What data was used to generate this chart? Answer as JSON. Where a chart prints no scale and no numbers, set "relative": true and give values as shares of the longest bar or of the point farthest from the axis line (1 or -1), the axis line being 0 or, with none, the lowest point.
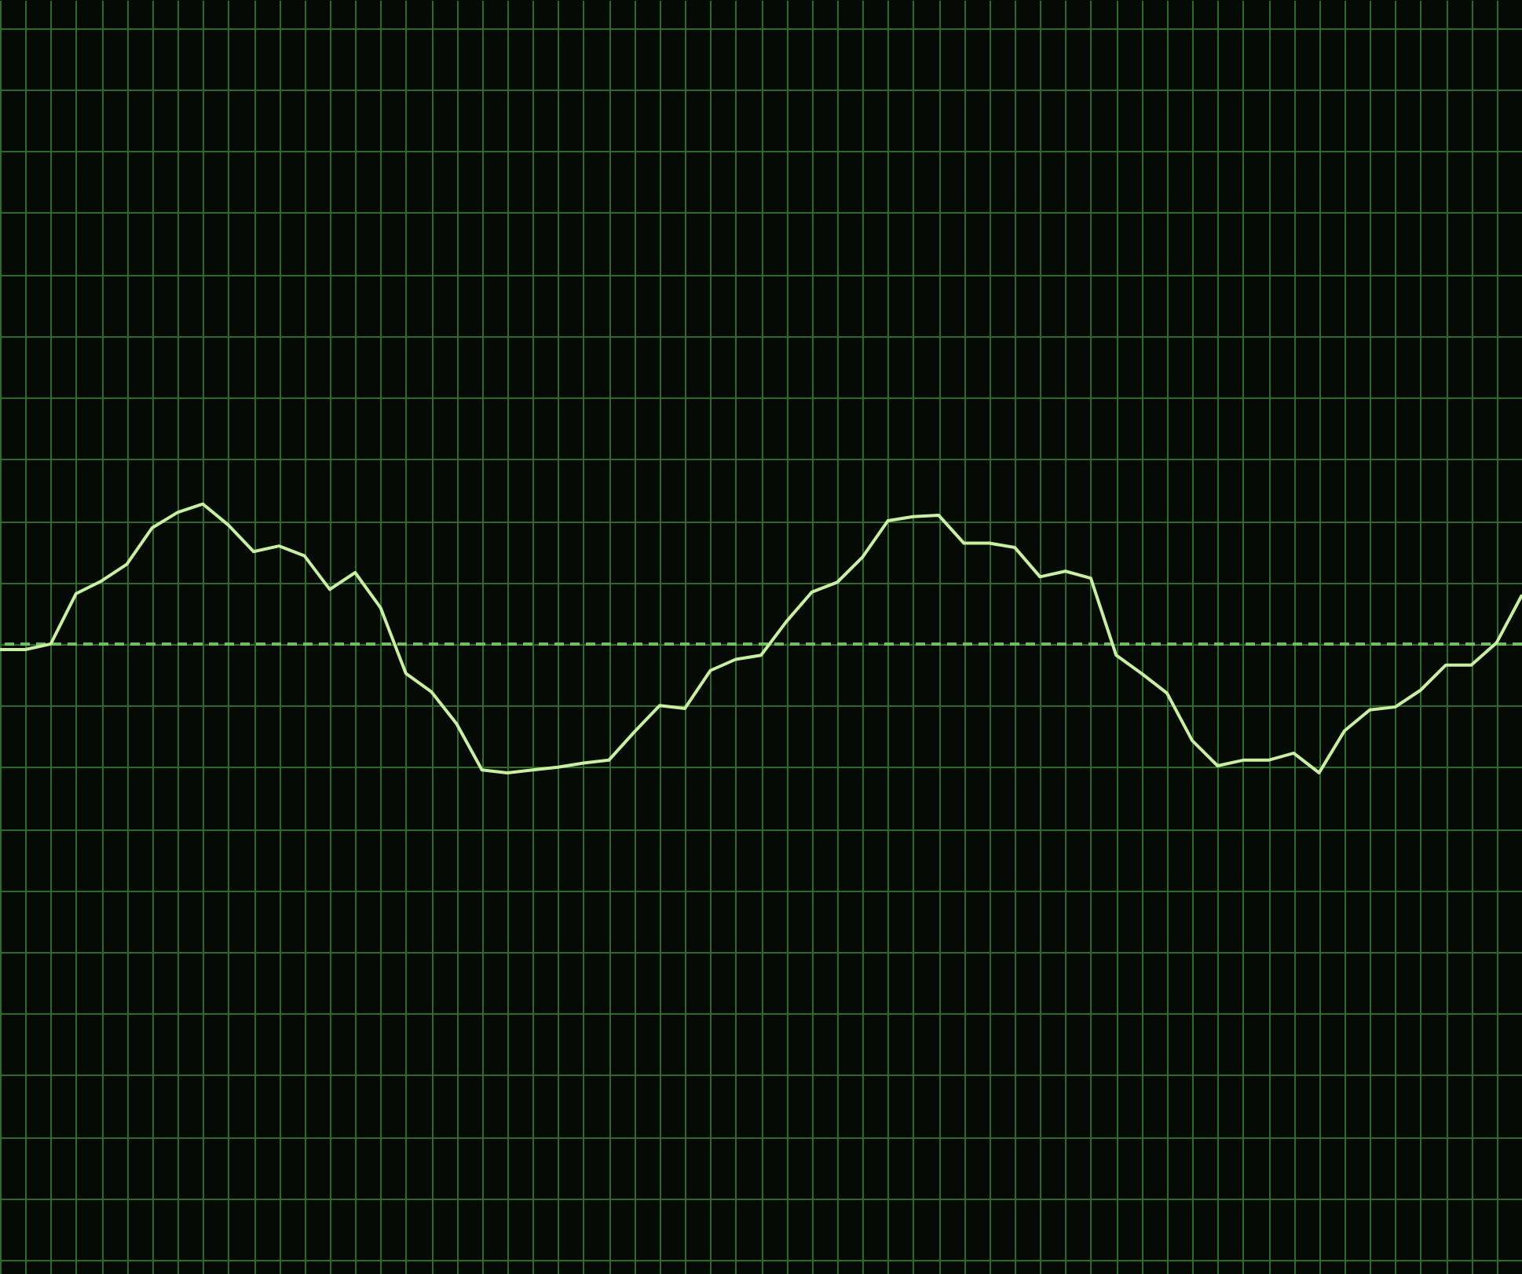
{
  "chart_data": {
    "type": "line",
    "relative": true,
    "grid": true,
    "marker": "none",
    "line_style": "solid",
    "categories": [
      null,
      null,
      null,
      null,
      null,
      null,
      null,
      null,
      null,
      null,
      null,
      null,
      null,
      null,
      null,
      null,
      null,
      null,
      null,
      null,
      null,
      null,
      null,
      null,
      null,
      null,
      null,
      null,
      null,
      null,
      null,
      null,
      null,
      null,
      null,
      null,
      null,
      null,
      null,
      null,
      null,
      null,
      null,
      null,
      null,
      null,
      null,
      null,
      null,
      null,
      null,
      null,
      null,
      null,
      null,
      null,
      null,
      null,
      null,
      null,
      null
    ],
    "series": [
      {
        "color": "#c8f0a0",
        "values": [
          -0.04,
          -0.04,
          0,
          0.36,
          0.45,
          0.57,
          0.83,
          0.94,
          1,
          0.85,
          0.66,
          0.7,
          0.63,
          0.39,
          0.51,
          0.26,
          -0.21,
          -0.34,
          -0.57,
          -0.9,
          -0.92,
          -0.9,
          -0.88,
          -0.85,
          -0.83,
          -0.63,
          -0.44,
          -0.46,
          -0.19,
          -0.11,
          -0.08,
          0.16,
          0.37,
          0.44,
          0.62,
          0.88,
          0.91,
          0.92,
          0.72,
          0.72,
          0.69,
          0.48,
          0.52,
          0.47,
          -0.08,
          -0.21,
          -0.35,
          -0.69,
          -0.87,
          -0.83,
          -0.83,
          -0.78,
          -0.92,
          -0.62,
          -0.47,
          -0.45,
          -0.33,
          -0.15,
          -0.15,
          0.01,
          0.35
        ]
      }
    ],
    "ref_lines": [
      {
        "axis": "y",
        "value": 0,
        "line_style": "dashed",
        "color": "#6fbf5f"
      }
    ]
  }
}
